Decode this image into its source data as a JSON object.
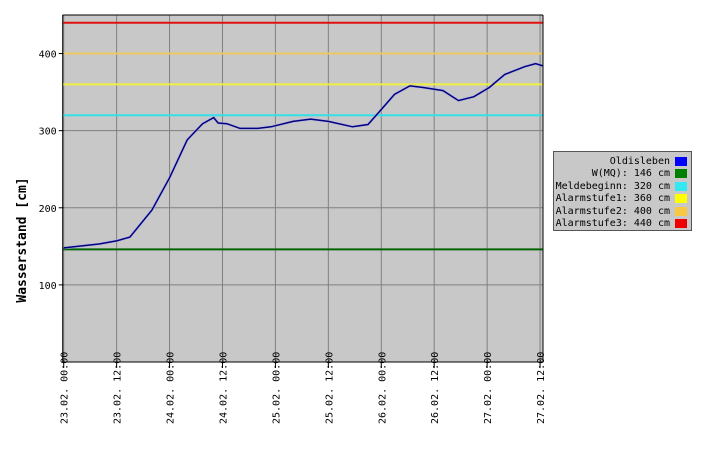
{
  "chart_data": {
    "type": "line",
    "ylabel": "Wasserstand [cm]",
    "xlabel": "",
    "ylim": [
      0,
      450
    ],
    "xlim": [
      "23.02. 00:00",
      "27.02. 12:40"
    ],
    "yticks": [
      100,
      200,
      300,
      400
    ],
    "xticks": [
      "23.02. 00:00",
      "23.02. 12:00",
      "24.02. 00:00",
      "24.02. 12:00",
      "25.02. 00:00",
      "25.02. 12:00",
      "26.02. 00:00",
      "26.02. 12:00",
      "27.02. 00:00",
      "27.02. 12:00"
    ],
    "grid": true,
    "background": "#c8c8c8",
    "legend_position": "right",
    "series": [
      {
        "name": "Oldisleben",
        "color": "#000080",
        "legend_color": "#0000ff",
        "points": [
          [
            "23.02. 00:00",
            148
          ],
          [
            "23.02. 08:00",
            153
          ],
          [
            "23.02. 12:00",
            157
          ],
          [
            "23.02. 15:00",
            162
          ],
          [
            "23.02. 20:00",
            197
          ],
          [
            "24.02. 00:00",
            239
          ],
          [
            "24.02. 04:00",
            288
          ],
          [
            "24.02. 07:30",
            309
          ],
          [
            "24.02. 10:00",
            317
          ],
          [
            "24.02. 11:00",
            310
          ],
          [
            "24.02. 13:00",
            309
          ],
          [
            "24.02. 16:00",
            303
          ],
          [
            "24.02. 20:00",
            303
          ],
          [
            "24.02. 23:00",
            305
          ],
          [
            "25.02. 04:00",
            312
          ],
          [
            "25.02. 08:00",
            315
          ],
          [
            "25.02. 12:00",
            312
          ],
          [
            "25.02. 17:30",
            305
          ],
          [
            "25.02. 21:00",
            308
          ],
          [
            "25.02. 23:00",
            321
          ],
          [
            "26.02. 03:00",
            347
          ],
          [
            "26.02. 06:30",
            358
          ],
          [
            "26.02. 09:30",
            356
          ],
          [
            "26.02. 14:00",
            352
          ],
          [
            "26.02. 17:30",
            339
          ],
          [
            "26.02. 21:00",
            344
          ],
          [
            "27.02. 00:30",
            356
          ],
          [
            "27.02. 04:00",
            373
          ],
          [
            "27.02. 08:30",
            383
          ],
          [
            "27.02. 11:00",
            387
          ],
          [
            "27.02. 12:40",
            384
          ]
        ]
      }
    ],
    "thresholds": [
      {
        "label": "W(MQ): 146 cm",
        "value": 146,
        "color": "#006400",
        "legend_color": "#008000"
      },
      {
        "label": "Meldebeginn: 320 cm",
        "value": 320,
        "color": "#33e0e8",
        "legend_color": "#33e8f0"
      },
      {
        "label": "Alarmstufe1: 360 cm",
        "value": 360,
        "color": "#f0f040",
        "legend_color": "#ffff00"
      },
      {
        "label": "Alarmstufe2: 400 cm",
        "value": 400,
        "color": "#f0c860",
        "legend_color": "#f8c840"
      },
      {
        "label": "Alarmstufe3: 440 cm",
        "value": 440,
        "color": "#e01010",
        "legend_color": "#ee0000"
      }
    ]
  }
}
